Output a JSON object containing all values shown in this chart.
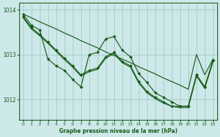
{
  "background_color": "#cce8e8",
  "grid_color": "#aacccc",
  "line_color": "#1a5c1a",
  "xlabel": "Graphe pression niveau de la mer (hPa)",
  "xlim": [
    -0.5,
    23.5
  ],
  "ylim": [
    1011.55,
    1014.15
  ],
  "yticks": [
    1012,
    1013,
    1014
  ],
  "xticks": [
    0,
    1,
    2,
    3,
    4,
    5,
    6,
    7,
    8,
    9,
    10,
    11,
    12,
    13,
    14,
    15,
    16,
    17,
    18,
    19,
    20,
    21,
    22,
    23
  ],
  "series": [
    {
      "x": [
        0,
        1,
        2,
        3,
        4,
        5,
        6,
        7,
        8,
        9,
        10,
        11,
        12,
        13,
        14,
        15,
        16,
        17,
        18,
        19,
        20,
        21,
        22,
        23
      ],
      "y": [
        1013.9,
        1013.82,
        1013.73,
        1013.65,
        1013.57,
        1013.48,
        1013.4,
        1013.31,
        1013.23,
        1013.15,
        1013.06,
        1012.98,
        1012.9,
        1012.82,
        1012.73,
        1012.65,
        1012.57,
        1012.48,
        1012.4,
        1012.32,
        1012.23,
        1013.0,
        1012.55,
        1012.9
      ],
      "marker": false,
      "linewidth": 0.9
    },
    {
      "x": [
        0,
        1,
        2,
        3,
        4,
        5,
        6,
        7,
        8,
        9,
        10,
        11,
        12,
        13,
        14,
        15,
        16,
        17,
        18,
        19,
        20,
        21,
        22,
        23
      ],
      "y": [
        1013.9,
        1013.65,
        1013.55,
        1012.9,
        1012.75,
        1012.65,
        1012.45,
        1012.28,
        1013.0,
        1013.05,
        1013.35,
        1013.4,
        1013.1,
        1012.95,
        1012.58,
        1012.38,
        1012.15,
        1012.05,
        1011.95,
        1011.85,
        1011.85,
        1012.55,
        1012.28,
        1012.87
      ],
      "marker": true,
      "linewidth": 0.9
    },
    {
      "x": [
        0,
        1,
        2,
        3,
        4,
        5,
        6,
        7,
        8,
        9,
        10,
        11,
        12,
        13,
        14,
        15,
        16,
        17,
        18,
        19,
        20,
        21,
        22,
        23
      ],
      "y": [
        1013.85,
        1013.6,
        1013.45,
        1013.28,
        1013.1,
        1012.92,
        1012.75,
        1012.55,
        1012.65,
        1012.7,
        1012.95,
        1013.05,
        1012.85,
        1012.75,
        1012.4,
        1012.18,
        1012.05,
        1011.95,
        1011.85,
        1011.85,
        1011.85,
        1012.55,
        1012.28,
        1012.87
      ],
      "marker": true,
      "linewidth": 0.9
    },
    {
      "x": [
        0,
        1,
        2,
        3,
        4,
        5,
        6,
        7,
        8,
        9,
        10,
        11,
        12,
        13,
        14,
        15,
        16,
        17,
        18,
        19,
        20,
        21,
        22,
        23
      ],
      "y": [
        1013.82,
        1013.57,
        1013.42,
        1013.25,
        1013.07,
        1012.89,
        1012.72,
        1012.52,
        1012.62,
        1012.67,
        1012.92,
        1013.02,
        1012.82,
        1012.72,
        1012.37,
        1012.15,
        1012.02,
        1011.92,
        1011.85,
        1011.82,
        1011.82,
        1012.52,
        1012.25,
        1012.84
      ],
      "marker": false,
      "linewidth": 0.9
    }
  ]
}
